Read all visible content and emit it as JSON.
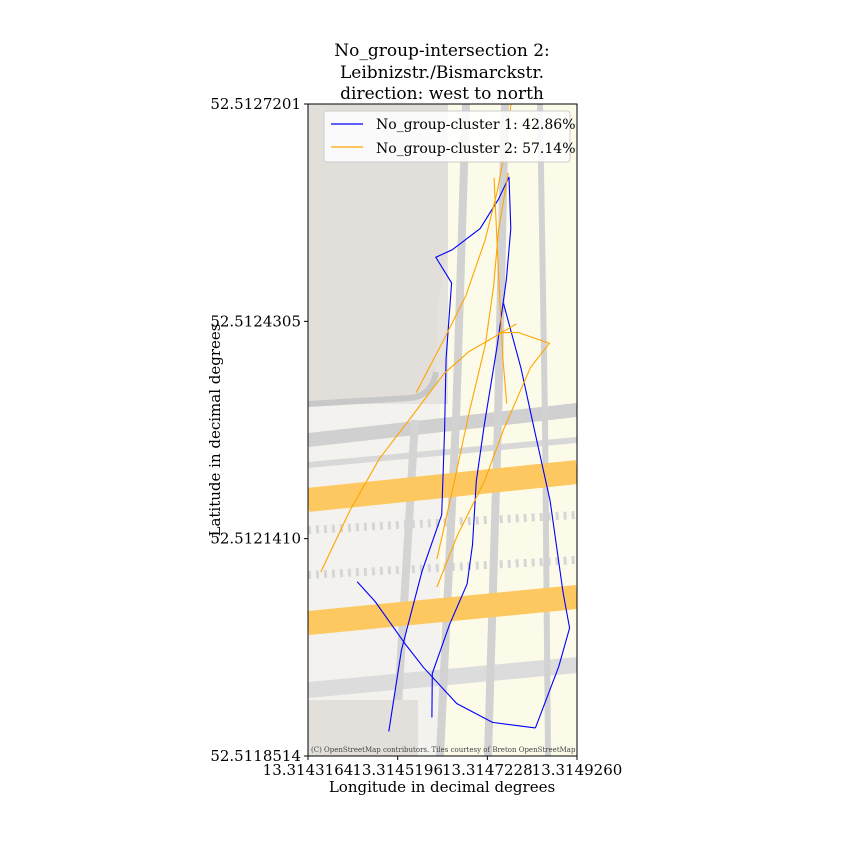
{
  "chart_data": {
    "type": "line",
    "title_lines": [
      "No_group-intersection 2:",
      "Leibnizstr./Bismarckstr.",
      "direction: west to north"
    ],
    "xlabel": "Longitude in decimal degrees",
    "ylabel": "Latitude in decimal degrees",
    "xlim": [
      13.3143164,
      13.314926
    ],
    "ylim": [
      52.5118514,
      52.5127201
    ],
    "x_ticks": [
      13.3143164,
      13.3145196,
      13.3147228,
      13.314926
    ],
    "x_tick_labels": [
      "13.3143164",
      "13.3145196",
      "13.3147228",
      "13.3149260"
    ],
    "y_ticks": [
      52.5118514,
      52.512141,
      52.5124305,
      52.5127201
    ],
    "y_tick_labels": [
      "52.5118514",
      "52.5121410",
      "52.5124305",
      "52.5127201"
    ],
    "legend_position": "top-right",
    "grid": false,
    "attribution": "(C) OpenStreetMap contributors. Tiles courtesy of Breton OpenStreetMap Team",
    "series": [
      {
        "name": "No_group-cluster 1: 42.86%",
        "color": "#0000ff",
        "tracks": [
          [
            [
              13.3144278,
              52.5120835
            ],
            [
              13.3144682,
              52.5120574
            ],
            [
              13.3145382,
              52.5119994
            ],
            [
              13.3145785,
              52.511969
            ],
            [
              13.3146534,
              52.5119213
            ],
            [
              13.3147344,
              52.5118962
            ],
            [
              13.3148317,
              52.5118888
            ]
          ],
          [
            [
              13.3148317,
              52.5118888
            ],
            [
              13.3148845,
              52.5119704
            ],
            [
              13.3149093,
              52.5120219
            ],
            [
              13.3148945,
              52.512069
            ],
            [
              13.3148651,
              52.5121916
            ],
            [
              13.3148303,
              52.5122836
            ],
            [
              13.3147992,
              52.5123681
            ],
            [
              13.3147594,
              52.5124544
            ]
          ],
          [
            [
              13.3144995,
              52.511884
            ],
            [
              13.314528,
              52.5119922
            ],
            [
              13.3145746,
              52.5120969
            ],
            [
              13.3146193,
              52.5121728
            ],
            [
              13.3146259,
              52.5122865
            ],
            [
              13.3146293,
              52.5123811
            ],
            [
              13.3146418,
              52.5124817
            ],
            [
              13.3146061,
              52.5125158
            ],
            [
              13.3146431,
              52.5125259
            ],
            [
              13.3147064,
              52.5125541
            ],
            [
              13.314748,
              52.5125932
            ],
            [
              13.3147719,
              52.5126228
            ],
            [
              13.314776,
              52.5125541
            ],
            [
              13.314766,
              52.5124866
            ],
            [
              13.3147453,
              52.5123987
            ],
            [
              13.3147157,
              52.5122918
            ],
            [
              13.3146977,
              52.5122175
            ],
            [
              13.3146891,
              52.5121328
            ],
            [
              13.3146769,
              52.5120805
            ],
            [
              13.3146372,
              52.5120267
            ],
            [
              13.3145981,
              52.5119615
            ],
            [
              13.3145972,
              52.5119027
            ]
          ]
        ]
      },
      {
        "name": "No_group-cluster 2: 57.14%",
        "color": "#ffa500",
        "tracks": [
          [
            [
              13.3143454,
              52.5120966
            ],
            [
              13.3144127,
              52.51218
            ],
            [
              13.3144785,
              52.5122476
            ],
            [
              13.3145513,
              52.5123037
            ],
            [
              13.314625,
              52.5123611
            ],
            [
              13.3146815,
              52.5123903
            ],
            [
              13.3147292,
              52.5124065
            ],
            [
              13.3147886,
              52.5124272
            ]
          ],
          [
            [
              13.3146084,
              52.5120766
            ],
            [
              13.3146544,
              52.5121448
            ],
            [
              13.3147173,
              52.5122189
            ],
            [
              13.3147605,
              52.5122877
            ],
            [
              13.3148208,
              52.5123693
            ],
            [
              13.3148634,
              52.5124012
            ],
            [
              13.3147921,
              52.5124158
            ],
            [
              13.3147484,
              52.5124152
            ]
          ],
          [
            [
              13.3146084,
              52.5121137
            ],
            [
              13.3146433,
              52.5122047
            ],
            [
              13.3146822,
              52.5123104
            ],
            [
              13.3147181,
              52.512399
            ],
            [
              13.3147369,
              52.5124771
            ],
            [
              13.3147481,
              52.5125517
            ],
            [
              13.3147701,
              52.5126282
            ]
          ],
          [
            [
              13.3145613,
              52.5123356
            ],
            [
              13.314622,
              52.5124037
            ],
            [
              13.3146739,
              52.5124646
            ],
            [
              13.3147176,
              52.5125383
            ],
            [
              13.3147451,
              52.5126032
            ],
            [
              13.3147591,
              52.5126478
            ],
            [
              13.3147765,
              52.5127201
            ]
          ],
          [
            [
              13.3147381,
              52.5126218
            ],
            [
              13.3147442,
              52.5125428
            ],
            [
              13.3147512,
              52.5124575
            ],
            [
              13.3147579,
              52.5123826
            ],
            [
              13.3147668,
              52.5123209
            ]
          ]
        ]
      }
    ]
  }
}
